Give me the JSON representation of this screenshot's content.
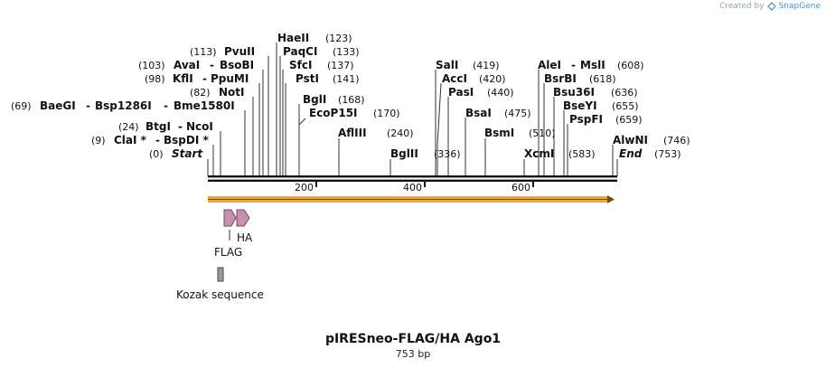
{
  "watermark": {
    "prefix": "Created by",
    "brand": "SnapGene"
  },
  "title": "pIRESneo-FLAG/HA Ago1",
  "length_label": "753 bp",
  "colors": {
    "orf": "#f5a623",
    "flag": "#c78fb0",
    "kozak": "#9a9aa5",
    "backbone": "#111111"
  },
  "enzymes": [
    {
      "id": "start",
      "pos": "(0)",
      "name": "Start",
      "italic": true
    },
    {
      "id": "clai",
      "pos": "(9)",
      "name": "ClaI *",
      "alt": "BspDI *"
    },
    {
      "id": "btgi",
      "pos": "(24)",
      "name": "BtgI",
      "alt": "NcoI"
    },
    {
      "id": "baegi",
      "pos": "(69)",
      "name": "BaeGI",
      "alt": "Bsp1286I",
      "alt2": "Bme1580I"
    },
    {
      "id": "noti",
      "pos": "(82)",
      "name": "NotI"
    },
    {
      "id": "kfli",
      "pos": "(98)",
      "name": "KflI",
      "alt": "PpuMI"
    },
    {
      "id": "avai",
      "pos": "(103)",
      "name": "AvaI",
      "alt": "BsoBI"
    },
    {
      "id": "pvuii",
      "pos": "(113)",
      "name": "PvuII"
    },
    {
      "id": "haeii",
      "name": "HaeII",
      "pos": "(123)"
    },
    {
      "id": "paqci",
      "name": "PaqCI",
      "pos": "(133)"
    },
    {
      "id": "sfci",
      "name": "SfcI",
      "pos": "(137)"
    },
    {
      "id": "psti",
      "name": "PstI",
      "pos": "(141)"
    },
    {
      "id": "bgli",
      "name": "BglI",
      "pos": "(168)"
    },
    {
      "id": "ecop15i",
      "name": "EcoP15I",
      "pos": "(170)"
    },
    {
      "id": "afliii",
      "name": "AflIII",
      "pos": "(240)"
    },
    {
      "id": "bglii",
      "name": "BglII",
      "pos": "(336)"
    },
    {
      "id": "sali",
      "name": "SalI",
      "pos": "(419)"
    },
    {
      "id": "acci",
      "name": "AccI",
      "pos": "(420)"
    },
    {
      "id": "pasi",
      "name": "PasI",
      "pos": "(440)"
    },
    {
      "id": "bsai",
      "name": "BsaI",
      "pos": "(475)"
    },
    {
      "id": "bsmi",
      "name": "BsmI",
      "pos": "(510)"
    },
    {
      "id": "xcmi",
      "name": "XcmI",
      "pos": "(583)"
    },
    {
      "id": "alei",
      "name": "AleI",
      "alt": "MslI",
      "pos": "(608)"
    },
    {
      "id": "bsrbi",
      "name": "BsrBI",
      "pos": "(618)"
    },
    {
      "id": "bsu36i",
      "name": "Bsu36I",
      "pos": "(636)"
    },
    {
      "id": "bseyi",
      "name": "BseYI",
      "pos": "(655)"
    },
    {
      "id": "pspfi",
      "name": "PspFI",
      "pos": "(659)"
    },
    {
      "id": "alwni",
      "name": "AlwNI",
      "pos": "(746)"
    },
    {
      "id": "end",
      "name": "End",
      "pos": "(753)",
      "italic": true
    }
  ],
  "ticks": [
    "200",
    "400",
    "600"
  ],
  "features": {
    "flag": "FLAG",
    "ha": "HA",
    "kozak": "Kozak sequence"
  }
}
